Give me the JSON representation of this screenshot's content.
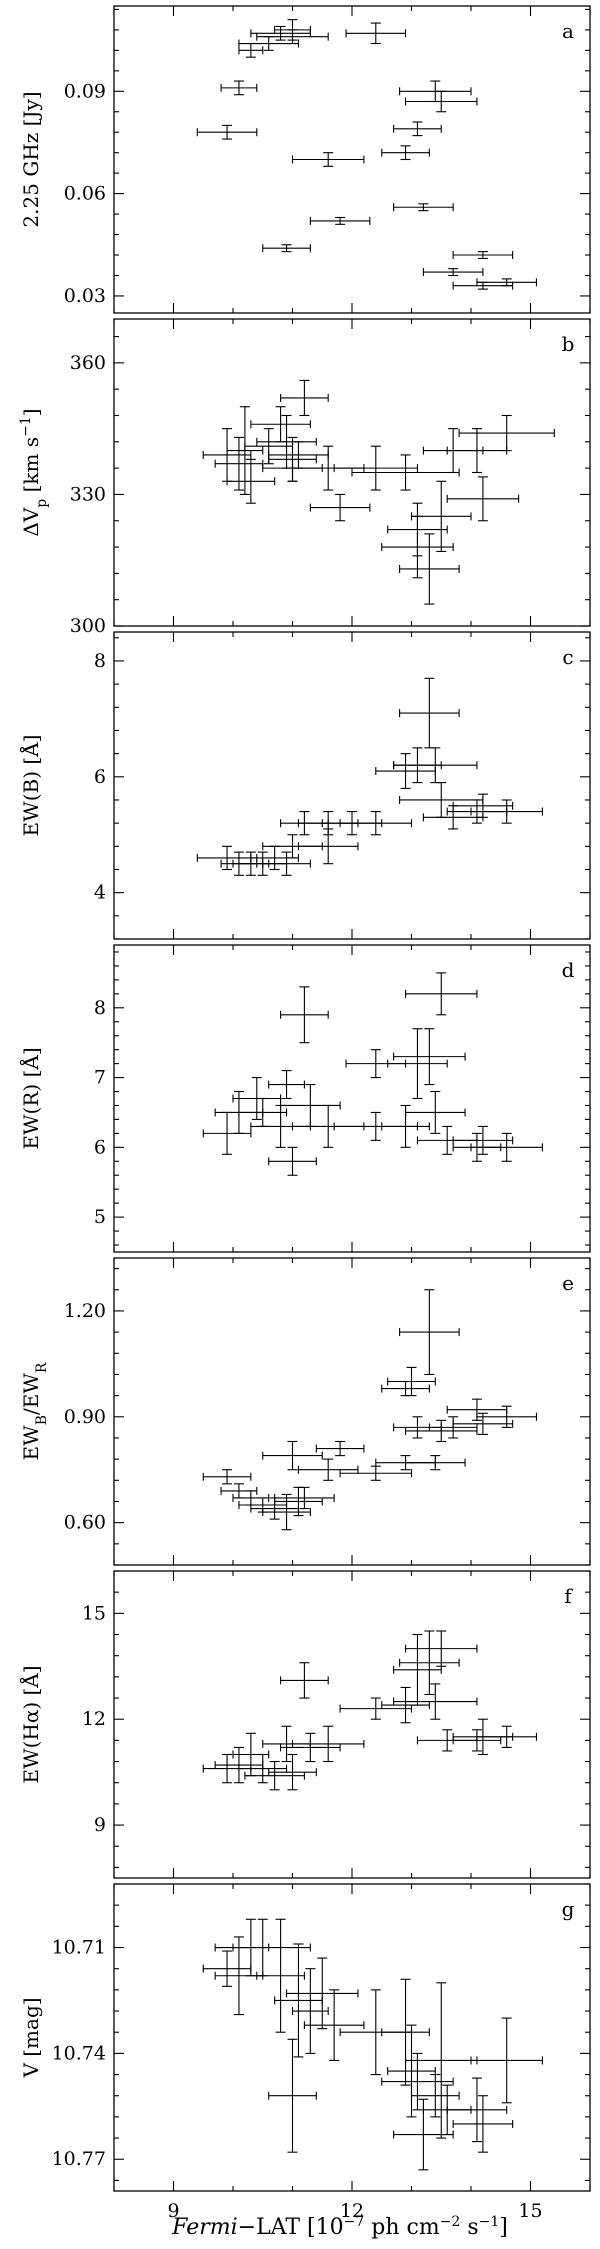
{
  "x_axis": {
    "label_italic": "Fermi",
    "label_rest": "−LAT [10",
    "label_exp1": "−7",
    "label_mid": " ph cm",
    "label_exp2": "−2",
    "label_mid2": " s",
    "label_exp3": "−1",
    "label_end": "]",
    "ticks": [
      9,
      12,
      15
    ],
    "tick_labels": [
      "9",
      "12",
      "15"
    ],
    "range": [
      8,
      16
    ]
  },
  "chart_data": [
    {
      "type": "scatter",
      "panel": "a",
      "ylabel_main": "2.25 GHz [Jy]",
      "ylim": [
        0.025,
        0.115
      ],
      "yticks": [
        0.03,
        0.06,
        0.09
      ],
      "ytick_labels": [
        "0.03",
        "0.06",
        "0.09"
      ],
      "points": [
        {
          "x": 9.9,
          "y": 0.078,
          "xerr": 0.5,
          "yerr": 0.002
        },
        {
          "x": 10.1,
          "y": 0.091,
          "xerr": 0.3,
          "yerr": 0.002
        },
        {
          "x": 10.3,
          "y": 0.102,
          "xerr": 0.2,
          "yerr": 0.002
        },
        {
          "x": 10.6,
          "y": 0.104,
          "xerr": 0.5,
          "yerr": 0.002
        },
        {
          "x": 10.8,
          "y": 0.107,
          "xerr": 0.5,
          "yerr": 0.002
        },
        {
          "x": 11.0,
          "y": 0.108,
          "xerr": 0.3,
          "yerr": 0.003
        },
        {
          "x": 11.0,
          "y": 0.106,
          "xerr": 0.6,
          "yerr": 0.002
        },
        {
          "x": 10.9,
          "y": 0.044,
          "xerr": 0.4,
          "yerr": 0.001
        },
        {
          "x": 11.6,
          "y": 0.07,
          "xerr": 0.6,
          "yerr": 0.002
        },
        {
          "x": 11.8,
          "y": 0.052,
          "xerr": 0.5,
          "yerr": 0.001
        },
        {
          "x": 12.4,
          "y": 0.107,
          "xerr": 0.5,
          "yerr": 0.003
        },
        {
          "x": 12.9,
          "y": 0.072,
          "xerr": 0.4,
          "yerr": 0.002
        },
        {
          "x": 13.1,
          "y": 0.079,
          "xerr": 0.4,
          "yerr": 0.002
        },
        {
          "x": 13.2,
          "y": 0.056,
          "xerr": 0.5,
          "yerr": 0.001
        },
        {
          "x": 13.4,
          "y": 0.09,
          "xerr": 0.6,
          "yerr": 0.003
        },
        {
          "x": 13.5,
          "y": 0.087,
          "xerr": 0.6,
          "yerr": 0.003
        },
        {
          "x": 13.7,
          "y": 0.037,
          "xerr": 0.5,
          "yerr": 0.001
        },
        {
          "x": 14.2,
          "y": 0.042,
          "xerr": 0.5,
          "yerr": 0.001
        },
        {
          "x": 14.2,
          "y": 0.033,
          "xerr": 0.5,
          "yerr": 0.001
        },
        {
          "x": 14.6,
          "y": 0.034,
          "xerr": 0.5,
          "yerr": 0.001
        }
      ]
    },
    {
      "type": "scatter",
      "panel": "b",
      "ylabel_main": "ΔV",
      "ylabel_sub": "p",
      "ylabel_unit": " [km s",
      "ylabel_exp": "−1",
      "ylabel_end": "]",
      "ylim": [
        300,
        370
      ],
      "yticks": [
        300,
        330,
        360
      ],
      "ytick_labels": [
        "300",
        "330",
        "360"
      ],
      "points": [
        {
          "x": 9.9,
          "y": 339,
          "xerr": 0.4,
          "yerr": 6
        },
        {
          "x": 10.1,
          "y": 337,
          "xerr": 0.4,
          "yerr": 6
        },
        {
          "x": 10.2,
          "y": 340,
          "xerr": 0.3,
          "yerr": 10
        },
        {
          "x": 10.3,
          "y": 333,
          "xerr": 0.4,
          "yerr": 5
        },
        {
          "x": 10.6,
          "y": 341,
          "xerr": 0.4,
          "yerr": 4
        },
        {
          "x": 10.8,
          "y": 346,
          "xerr": 0.5,
          "yerr": 4
        },
        {
          "x": 10.9,
          "y": 342,
          "xerr": 0.5,
          "yerr": 6
        },
        {
          "x": 11.0,
          "y": 338,
          "xerr": 0.4,
          "yerr": 5
        },
        {
          "x": 11.0,
          "y": 336,
          "xerr": 0.5,
          "yerr": 3
        },
        {
          "x": 11.2,
          "y": 352,
          "xerr": 0.4,
          "yerr": 4
        },
        {
          "x": 11.1,
          "y": 339,
          "xerr": 0.5,
          "yerr": 3
        },
        {
          "x": 11.6,
          "y": 336,
          "xerr": 0.6,
          "yerr": 5
        },
        {
          "x": 11.8,
          "y": 327,
          "xerr": 0.5,
          "yerr": 3
        },
        {
          "x": 12.4,
          "y": 336,
          "xerr": 0.7,
          "yerr": 5
        },
        {
          "x": 12.9,
          "y": 335,
          "xerr": 0.9,
          "yerr": 4
        },
        {
          "x": 13.1,
          "y": 322,
          "xerr": 0.5,
          "yerr": 6
        },
        {
          "x": 13.1,
          "y": 318,
          "xerr": 0.6,
          "yerr": 7
        },
        {
          "x": 13.3,
          "y": 313,
          "xerr": 0.5,
          "yerr": 8
        },
        {
          "x": 13.5,
          "y": 325,
          "xerr": 0.5,
          "yerr": 8
        },
        {
          "x": 13.7,
          "y": 340,
          "xerr": 0.5,
          "yerr": 5
        },
        {
          "x": 14.1,
          "y": 340,
          "xerr": 0.5,
          "yerr": 5
        },
        {
          "x": 14.2,
          "y": 329,
          "xerr": 0.6,
          "yerr": 5
        },
        {
          "x": 14.6,
          "y": 344,
          "xerr": 0.8,
          "yerr": 4
        }
      ]
    },
    {
      "type": "scatter",
      "panel": "c",
      "ylabel_main": "EW(B) [Å]",
      "ylim": [
        3.2,
        8.5
      ],
      "yticks": [
        4,
        6,
        8
      ],
      "ytick_labels": [
        "4",
        "6",
        "8"
      ],
      "points": [
        {
          "x": 9.9,
          "y": 4.6,
          "xerr": 0.5,
          "yerr": 0.2
        },
        {
          "x": 10.1,
          "y": 4.5,
          "xerr": 0.3,
          "yerr": 0.2
        },
        {
          "x": 10.3,
          "y": 4.5,
          "xerr": 0.3,
          "yerr": 0.2
        },
        {
          "x": 10.5,
          "y": 4.5,
          "xerr": 0.4,
          "yerr": 0.2
        },
        {
          "x": 10.7,
          "y": 4.6,
          "xerr": 0.4,
          "yerr": 0.2
        },
        {
          "x": 10.9,
          "y": 4.5,
          "xerr": 0.4,
          "yerr": 0.2
        },
        {
          "x": 11.0,
          "y": 4.8,
          "xerr": 0.5,
          "yerr": 0.2
        },
        {
          "x": 11.2,
          "y": 5.2,
          "xerr": 0.4,
          "yerr": 0.2
        },
        {
          "x": 11.6,
          "y": 4.8,
          "xerr": 0.5,
          "yerr": 0.3
        },
        {
          "x": 11.6,
          "y": 5.2,
          "xerr": 0.5,
          "yerr": 0.2
        },
        {
          "x": 12.0,
          "y": 5.2,
          "xerr": 0.5,
          "yerr": 0.2
        },
        {
          "x": 12.4,
          "y": 5.2,
          "xerr": 0.6,
          "yerr": 0.2
        },
        {
          "x": 12.9,
          "y": 6.1,
          "xerr": 0.5,
          "yerr": 0.3
        },
        {
          "x": 13.1,
          "y": 6.2,
          "xerr": 0.4,
          "yerr": 0.3
        },
        {
          "x": 13.3,
          "y": 7.1,
          "xerr": 0.5,
          "yerr": 0.6
        },
        {
          "x": 13.4,
          "y": 6.2,
          "xerr": 0.7,
          "yerr": 0.3
        },
        {
          "x": 13.5,
          "y": 5.6,
          "xerr": 0.7,
          "yerr": 0.3
        },
        {
          "x": 13.7,
          "y": 5.3,
          "xerr": 0.5,
          "yerr": 0.2
        },
        {
          "x": 14.1,
          "y": 5.4,
          "xerr": 0.5,
          "yerr": 0.2
        },
        {
          "x": 14.2,
          "y": 5.5,
          "xerr": 0.5,
          "yerr": 0.2
        },
        {
          "x": 14.6,
          "y": 5.4,
          "xerr": 0.6,
          "yerr": 0.2
        }
      ]
    },
    {
      "type": "scatter",
      "panel": "d",
      "ylabel_main": "EW(R) [Å]",
      "ylim": [
        4.5,
        8.9
      ],
      "yticks": [
        5,
        6,
        7,
        8
      ],
      "ytick_labels": [
        "5",
        "6",
        "7",
        "8"
      ],
      "points": [
        {
          "x": 9.9,
          "y": 6.2,
          "xerr": 0.4,
          "yerr": 0.3
        },
        {
          "x": 10.1,
          "y": 6.5,
          "xerr": 0.4,
          "yerr": 0.3
        },
        {
          "x": 10.4,
          "y": 6.7,
          "xerr": 0.4,
          "yerr": 0.3
        },
        {
          "x": 10.5,
          "y": 6.5,
          "xerr": 0.4,
          "yerr": 0.2
        },
        {
          "x": 10.8,
          "y": 6.3,
          "xerr": 0.5,
          "yerr": 0.3
        },
        {
          "x": 10.9,
          "y": 6.9,
          "xerr": 0.3,
          "yerr": 0.2
        },
        {
          "x": 11.0,
          "y": 5.8,
          "xerr": 0.4,
          "yerr": 0.2
        },
        {
          "x": 11.2,
          "y": 7.9,
          "xerr": 0.4,
          "yerr": 0.4
        },
        {
          "x": 11.3,
          "y": 6.6,
          "xerr": 0.5,
          "yerr": 0.3
        },
        {
          "x": 11.6,
          "y": 6.3,
          "xerr": 0.6,
          "yerr": 0.3
        },
        {
          "x": 12.4,
          "y": 7.2,
          "xerr": 0.5,
          "yerr": 0.2
        },
        {
          "x": 12.4,
          "y": 6.3,
          "xerr": 0.7,
          "yerr": 0.2
        },
        {
          "x": 12.9,
          "y": 6.3,
          "xerr": 0.4,
          "yerr": 0.3
        },
        {
          "x": 13.1,
          "y": 7.2,
          "xerr": 0.5,
          "yerr": 0.5
        },
        {
          "x": 13.3,
          "y": 7.3,
          "xerr": 0.6,
          "yerr": 0.4
        },
        {
          "x": 13.4,
          "y": 6.5,
          "xerr": 0.5,
          "yerr": 0.3
        },
        {
          "x": 13.5,
          "y": 8.2,
          "xerr": 0.6,
          "yerr": 0.3
        },
        {
          "x": 13.6,
          "y": 6.1,
          "xerr": 0.5,
          "yerr": 0.2
        },
        {
          "x": 14.1,
          "y": 6.0,
          "xerr": 0.4,
          "yerr": 0.2
        },
        {
          "x": 14.2,
          "y": 6.1,
          "xerr": 0.5,
          "yerr": 0.2
        },
        {
          "x": 14.6,
          "y": 6.0,
          "xerr": 0.6,
          "yerr": 0.2
        }
      ]
    },
    {
      "type": "scatter",
      "panel": "e",
      "ylabel_main": "EW",
      "ylabel_sub": "B",
      "ylabel_slash": "/EW",
      "ylabel_sub2": "R",
      "ylim": [
        0.48,
        1.35
      ],
      "yticks": [
        0.6,
        0.9,
        1.2
      ],
      "ytick_labels": [
        "0.60",
        "0.90",
        "1.20"
      ],
      "points": [
        {
          "x": 9.9,
          "y": 0.73,
          "xerr": 0.4,
          "yerr": 0.02
        },
        {
          "x": 10.1,
          "y": 0.69,
          "xerr": 0.3,
          "yerr": 0.02
        },
        {
          "x": 10.3,
          "y": 0.67,
          "xerr": 0.3,
          "yerr": 0.02
        },
        {
          "x": 10.5,
          "y": 0.65,
          "xerr": 0.4,
          "yerr": 0.02
        },
        {
          "x": 10.7,
          "y": 0.64,
          "xerr": 0.4,
          "yerr": 0.03
        },
        {
          "x": 10.9,
          "y": 0.63,
          "xerr": 0.4,
          "yerr": 0.05
        },
        {
          "x": 11.0,
          "y": 0.79,
          "xerr": 0.5,
          "yerr": 0.04
        },
        {
          "x": 11.1,
          "y": 0.66,
          "xerr": 0.4,
          "yerr": 0.04
        },
        {
          "x": 11.2,
          "y": 0.67,
          "xerr": 0.5,
          "yerr": 0.03
        },
        {
          "x": 11.6,
          "y": 0.75,
          "xerr": 0.5,
          "yerr": 0.03
        },
        {
          "x": 11.8,
          "y": 0.81,
          "xerr": 0.4,
          "yerr": 0.02
        },
        {
          "x": 12.4,
          "y": 0.74,
          "xerr": 0.6,
          "yerr": 0.02
        },
        {
          "x": 12.9,
          "y": 0.77,
          "xerr": 0.5,
          "yerr": 0.02
        },
        {
          "x": 13.0,
          "y": 1.0,
          "xerr": 0.4,
          "yerr": 0.04
        },
        {
          "x": 12.9,
          "y": 0.98,
          "xerr": 0.4,
          "yerr": 0.02
        },
        {
          "x": 13.1,
          "y": 0.87,
          "xerr": 0.4,
          "yerr": 0.03
        },
        {
          "x": 13.3,
          "y": 1.14,
          "xerr": 0.5,
          "yerr": 0.12
        },
        {
          "x": 13.4,
          "y": 0.77,
          "xerr": 0.5,
          "yerr": 0.02
        },
        {
          "x": 13.5,
          "y": 0.86,
          "xerr": 0.6,
          "yerr": 0.03
        },
        {
          "x": 13.7,
          "y": 0.87,
          "xerr": 0.4,
          "yerr": 0.03
        },
        {
          "x": 14.1,
          "y": 0.92,
          "xerr": 0.5,
          "yerr": 0.03
        },
        {
          "x": 14.2,
          "y": 0.88,
          "xerr": 0.5,
          "yerr": 0.03
        },
        {
          "x": 14.6,
          "y": 0.9,
          "xerr": 0.5,
          "yerr": 0.03
        }
      ]
    },
    {
      "type": "scatter",
      "panel": "f",
      "ylabel_main": "EW(Hα) [Å]",
      "ylim": [
        7.5,
        16.2
      ],
      "yticks": [
        9,
        12,
        15
      ],
      "ytick_labels": [
        "9",
        "12",
        "15"
      ],
      "points": [
        {
          "x": 9.9,
          "y": 10.6,
          "xerr": 0.4,
          "yerr": 0.4
        },
        {
          "x": 10.1,
          "y": 10.7,
          "xerr": 0.4,
          "yerr": 0.5
        },
        {
          "x": 10.3,
          "y": 11.0,
          "xerr": 0.3,
          "yerr": 0.6
        },
        {
          "x": 10.5,
          "y": 10.6,
          "xerr": 0.4,
          "yerr": 0.4
        },
        {
          "x": 10.7,
          "y": 10.4,
          "xerr": 0.5,
          "yerr": 0.4
        },
        {
          "x": 10.9,
          "y": 11.3,
          "xerr": 0.4,
          "yerr": 0.5
        },
        {
          "x": 11.0,
          "y": 10.5,
          "xerr": 0.4,
          "yerr": 0.5
        },
        {
          "x": 11.2,
          "y": 13.1,
          "xerr": 0.4,
          "yerr": 0.5
        },
        {
          "x": 11.3,
          "y": 11.2,
          "xerr": 0.5,
          "yerr": 0.4
        },
        {
          "x": 11.6,
          "y": 11.3,
          "xerr": 0.6,
          "yerr": 0.5
        },
        {
          "x": 12.4,
          "y": 12.3,
          "xerr": 0.6,
          "yerr": 0.3
        },
        {
          "x": 12.9,
          "y": 12.4,
          "xerr": 0.4,
          "yerr": 0.5
        },
        {
          "x": 13.1,
          "y": 13.4,
          "xerr": 0.4,
          "yerr": 1.0
        },
        {
          "x": 13.3,
          "y": 13.6,
          "xerr": 0.5,
          "yerr": 0.9
        },
        {
          "x": 13.4,
          "y": 12.5,
          "xerr": 0.7,
          "yerr": 0.5
        },
        {
          "x": 13.5,
          "y": 14.0,
          "xerr": 0.6,
          "yerr": 0.5
        },
        {
          "x": 13.6,
          "y": 11.4,
          "xerr": 0.5,
          "yerr": 0.3
        },
        {
          "x": 14.1,
          "y": 11.4,
          "xerr": 0.4,
          "yerr": 0.3
        },
        {
          "x": 14.2,
          "y": 11.5,
          "xerr": 0.5,
          "yerr": 0.5
        },
        {
          "x": 14.6,
          "y": 11.5,
          "xerr": 0.5,
          "yerr": 0.3
        }
      ]
    },
    {
      "type": "scatter",
      "panel": "g",
      "ylabel_main": "V [mag]",
      "ylim": [
        10.779,
        10.692
      ],
      "yticks": [
        10.71,
        10.74,
        10.77
      ],
      "ytick_labels": [
        "10.71",
        "10.74",
        "10.77"
      ],
      "points": [
        {
          "x": 9.9,
          "y": 10.716,
          "xerr": 0.4,
          "yerr": 0.005
        },
        {
          "x": 10.1,
          "y": 10.718,
          "xerr": 0.4,
          "yerr": 0.011
        },
        {
          "x": 10.3,
          "y": 10.71,
          "xerr": 0.3,
          "yerr": 0.008
        },
        {
          "x": 10.5,
          "y": 10.71,
          "xerr": 0.8,
          "yerr": 0.008
        },
        {
          "x": 10.8,
          "y": 10.718,
          "xerr": 0.4,
          "yerr": 0.016
        },
        {
          "x": 11.0,
          "y": 10.752,
          "xerr": 0.4,
          "yerr": 0.016
        },
        {
          "x": 11.1,
          "y": 10.725,
          "xerr": 0.4,
          "yerr": 0.016
        },
        {
          "x": 11.3,
          "y": 10.728,
          "xerr": 0.3,
          "yerr": 0.012
        },
        {
          "x": 11.5,
          "y": 10.723,
          "xerr": 0.6,
          "yerr": 0.01
        },
        {
          "x": 11.7,
          "y": 10.732,
          "xerr": 0.5,
          "yerr": 0.01
        },
        {
          "x": 12.4,
          "y": 10.734,
          "xerr": 0.6,
          "yerr": 0.012
        },
        {
          "x": 12.9,
          "y": 10.734,
          "xerr": 0.4,
          "yerr": 0.015
        },
        {
          "x": 13.0,
          "y": 10.745,
          "xerr": 0.4,
          "yerr": 0.013
        },
        {
          "x": 13.1,
          "y": 10.748,
          "xerr": 0.6,
          "yerr": 0.008
        },
        {
          "x": 13.2,
          "y": 10.763,
          "xerr": 0.5,
          "yerr": 0.01
        },
        {
          "x": 13.4,
          "y": 10.752,
          "xerr": 0.4,
          "yerr": 0.006
        },
        {
          "x": 13.5,
          "y": 10.742,
          "xerr": 0.6,
          "yerr": 0.022
        },
        {
          "x": 13.6,
          "y": 10.756,
          "xerr": 0.4,
          "yerr": 0.007
        },
        {
          "x": 14.1,
          "y": 10.756,
          "xerr": 0.5,
          "yerr": 0.009
        },
        {
          "x": 14.2,
          "y": 10.76,
          "xerr": 0.5,
          "yerr": 0.008
        },
        {
          "x": 14.6,
          "y": 10.742,
          "xerr": 0.6,
          "yerr": 0.012
        }
      ]
    }
  ]
}
